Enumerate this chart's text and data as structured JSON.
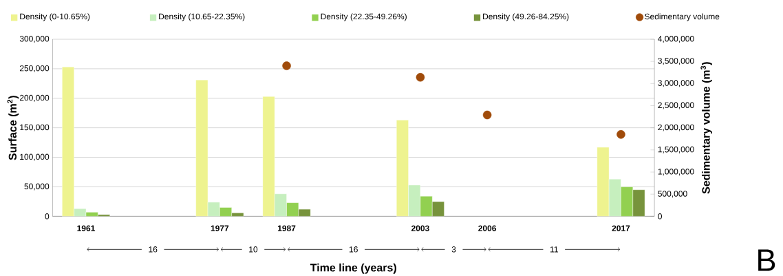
{
  "chart_data": {
    "type": "bar",
    "categories": [
      "1961",
      null,
      "1977",
      "1987",
      null,
      "2003",
      "2006",
      null,
      "2017"
    ],
    "xlabel": "Time line (years)",
    "ylabel": "Surface (m$^{2}$)",
    "y2label": "Sedimentary volume (m$^{3}$)",
    "ylim": [
      0,
      300000
    ],
    "yticks": [
      {
        "value": 0,
        "label": "0"
      },
      {
        "value": 50000,
        "label": "50,000"
      },
      {
        "value": 100000,
        "label": "100,000"
      },
      {
        "value": 150000,
        "label": "150,000"
      },
      {
        "value": 200000,
        "label": "200,000"
      },
      {
        "value": 250000,
        "label": "250,000"
      },
      {
        "value": 300000,
        "label": "300,000"
      }
    ],
    "y2lim": [
      0,
      4000000
    ],
    "y2ticks": [
      {
        "value": 0,
        "label": "0"
      },
      {
        "value": 500000,
        "label": "500,000"
      },
      {
        "value": 1000000,
        "label": "1,000,000"
      },
      {
        "value": 1500000,
        "label": "1,500,000"
      },
      {
        "value": 2000000,
        "label": "2,000,000"
      },
      {
        "value": 2500000,
        "label": "2,500,000"
      },
      {
        "value": 3000000,
        "label": "3,000,000"
      },
      {
        "value": 3500000,
        "label": "3,500,000"
      },
      {
        "value": 4000000,
        "label": "4,000,000"
      }
    ],
    "series": [
      {
        "name": "Density (0-10.65%)",
        "color": "#eef38f",
        "values": [
          253000,
          null,
          231000,
          203000,
          null,
          163000,
          null,
          null,
          117000
        ]
      },
      {
        "name": "Density (10.65-22.35%)",
        "color": "#c6efbe",
        "values": [
          13000,
          null,
          24000,
          38000,
          null,
          53000,
          null,
          null,
          63000
        ]
      },
      {
        "name": "Density (22.35-49.26%)",
        "color": "#92d050",
        "values": [
          7000,
          null,
          15000,
          23000,
          null,
          34000,
          null,
          null,
          50000
        ]
      },
      {
        "name": "Density (49.26-84.25%)",
        "color": "#77933c",
        "values": [
          3000,
          null,
          6000,
          12000,
          null,
          25000,
          null,
          null,
          45000
        ]
      },
      {
        "name": "Sedimentary volume",
        "type": "scatter",
        "axis": "y2",
        "marker": "circle",
        "color": "#a04b0a",
        "values": [
          null,
          null,
          null,
          3400000,
          null,
          3140000,
          2290000,
          null,
          1850000
        ]
      }
    ],
    "grid": "y",
    "legend": "top",
    "annotations": [
      "16",
      "10",
      "16",
      "3",
      "11",
      "B"
    ]
  }
}
